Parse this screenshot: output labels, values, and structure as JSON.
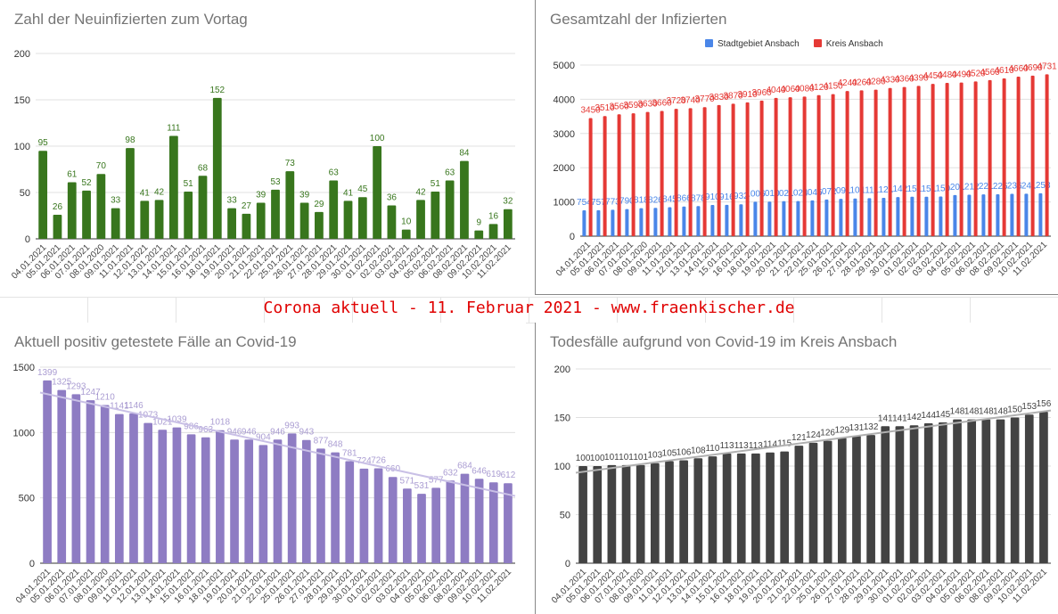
{
  "banner": "Corona aktuell - 11. Februar 2021 - www.fraenkischer.de",
  "dates": [
    "04.01.2021",
    "05.01.2021",
    "06.01.2021",
    "07.01.2021",
    "08.01.2020",
    "09.01.2021",
    "11.01.2021",
    "12.01.2021",
    "13.01.2021",
    "14.01.2021",
    "15.01.2021",
    "16.01.2021",
    "18.01.2021",
    "19.01.2021",
    "20.01.2021",
    "21.01.2021",
    "22.01.2021",
    "25.01.2021",
    "26.01.2021",
    "27.01.2021",
    "28.01.2021",
    "29.01.2021",
    "30.01.2021",
    "01.02.2021",
    "02.02.2021",
    "03.02.2021",
    "04.02.2021",
    "05.02.2021",
    "06.02.2021",
    "08.02.2021",
    "09.02.2021",
    "10.02.2021",
    "11.02.2021"
  ],
  "chart_data": [
    {
      "type": "bar",
      "title": "Zahl der Neuinfizierten zum Vortag",
      "ylim": [
        0,
        200
      ],
      "yticks": [
        0,
        50,
        100,
        150,
        200
      ],
      "color": "#38761d",
      "trendline": false,
      "series": [
        {
          "name": "Neuinfizierte",
          "values": [
            95,
            26,
            61,
            52,
            70,
            33,
            98,
            41,
            42,
            111,
            51,
            68,
            152,
            33,
            27,
            39,
            53,
            73,
            39,
            29,
            63,
            41,
            45,
            100,
            36,
            10,
            42,
            51,
            63,
            84,
            9,
            16,
            32
          ]
        }
      ]
    },
    {
      "type": "bar",
      "title": "Gesamtzahl der Infizierten",
      "ylim": [
        0,
        5000
      ],
      "yticks": [
        0,
        1000,
        2000,
        3000,
        4000,
        5000
      ],
      "trendline": false,
      "legend": "top",
      "series": [
        {
          "name": "Stadtgebiet Ansbach",
          "color": "#4a86e8",
          "values": [
            754,
            757,
            773,
            790,
            818,
            826,
            845,
            866,
            878,
            910,
            916,
            932,
            1006,
            1010,
            1021,
            1024,
            1045,
            1072,
            1091,
            1101,
            1111,
            1121,
            1142,
            1151,
            1151,
            1159,
            1201,
            1212,
            1221,
            1225,
            1236,
            1241,
            1253
          ]
        },
        {
          "name": "Kreis Ansbach",
          "color": "#e53935",
          "values": [
            3450,
            3510,
            3560,
            3590,
            3630,
            3660,
            3720,
            3740,
            3770,
            3830,
            3870,
            3910,
            3960,
            4040,
            4060,
            4080,
            4120,
            4150,
            4240,
            4260,
            4280,
            4330,
            4360,
            4390,
            4450,
            4480,
            4490,
            4520,
            4560,
            4610,
            4660,
            4690,
            4731
          ]
        }
      ]
    },
    {
      "type": "bar",
      "title": "Aktuell positiv getestete Fälle an Covid-19",
      "ylim": [
        0,
        1500
      ],
      "yticks": [
        0,
        500,
        1000,
        1500
      ],
      "color": "#8e7cc3",
      "trendline": true,
      "trendcolor": "#c9c0e6",
      "series": [
        {
          "name": "Aktuell positiv",
          "values": [
            1399,
            1325,
            1293,
            1247,
            1210,
            1141,
            1146,
            1073,
            1021,
            1039,
            986,
            963,
            1018,
            946,
            946,
            904,
            946,
            993,
            943,
            877,
            848,
            781,
            724,
            726,
            660,
            571,
            531,
            577,
            632,
            684,
            646,
            619,
            612
          ]
        }
      ]
    },
    {
      "type": "bar",
      "title": "Todesfälle aufgrund von Covid-19 im Kreis Ansbach",
      "ylim": [
        0,
        200
      ],
      "yticks": [
        0,
        50,
        100,
        150,
        200
      ],
      "color": "#434343",
      "trendline": true,
      "trendcolor": "#b0b0b0",
      "series": [
        {
          "name": "Todesfälle",
          "values": [
            100,
            100,
            101,
            101,
            101,
            103,
            105,
            106,
            108,
            110,
            113,
            113,
            113,
            114,
            115,
            121,
            124,
            126,
            129,
            131,
            132,
            141,
            141,
            142,
            144,
            145,
            148,
            148,
            148,
            148,
            150,
            153,
            156
          ]
        }
      ]
    }
  ]
}
